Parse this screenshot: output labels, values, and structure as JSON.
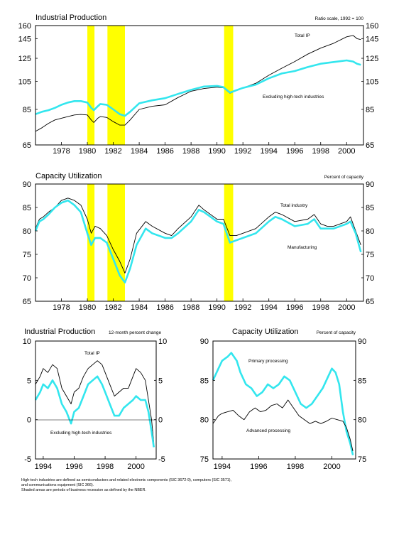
{
  "colors": {
    "highlight": "#ffff00",
    "black_series": "#000000",
    "cyan_series": "#33e6ee"
  },
  "chart_data": [
    {
      "type": "line",
      "id": "ip",
      "title": "Industrial Production",
      "scale_note": "Ratio scale, 1992 = 100",
      "log_scale": true,
      "xlim": [
        1976,
        2001.3
      ],
      "ylim": [
        65,
        160
      ],
      "yticks": [
        65,
        85,
        105,
        125,
        145,
        160
      ],
      "xticks": [
        "1978",
        "1980",
        "1982",
        "1984",
        "1986",
        "1988",
        "1990",
        "1992",
        "1994",
        "1996",
        "1998",
        "2000"
      ],
      "recessions": [
        [
          1980.0,
          1980.55
        ],
        [
          1981.55,
          1982.9
        ],
        [
          1990.55,
          1991.25
        ]
      ],
      "series": [
        {
          "name": "Total IP",
          "color": "black",
          "x": [
            1976.0,
            1976.5,
            1977.0,
            1977.5,
            1978.0,
            1978.5,
            1979.0,
            1979.5,
            1980.0,
            1980.3,
            1980.5,
            1980.8,
            1981.0,
            1981.5,
            1982.0,
            1982.5,
            1982.9,
            1983.3,
            1984.0,
            1985.0,
            1986.0,
            1987.0,
            1988.0,
            1989.0,
            1990.0,
            1990.5,
            1991.0,
            1992.0,
            1993.0,
            1994.0,
            1995.0,
            1996.0,
            1997.0,
            1998.0,
            1999.0,
            2000.0,
            2000.5,
            2000.8,
            2001.1
          ],
          "y": [
            72,
            74,
            76.5,
            78.5,
            79.5,
            80.5,
            81.5,
            81.8,
            81.5,
            78.5,
            77,
            79.5,
            80.5,
            80,
            77.5,
            75.5,
            75.5,
            78.5,
            85,
            87,
            88,
            93,
            97.5,
            99.5,
            100.5,
            100,
            96,
            100,
            103.5,
            110,
            116,
            122,
            129,
            135,
            140,
            147,
            148.5,
            145,
            144
          ]
        },
        {
          "name": "Excluding high-tech industries",
          "color": "cyan",
          "x": [
            1976.0,
            1976.5,
            1977.0,
            1977.5,
            1978.0,
            1978.5,
            1979.0,
            1979.5,
            1980.0,
            1980.3,
            1980.5,
            1980.8,
            1981.0,
            1981.5,
            1982.0,
            1982.5,
            1982.9,
            1983.3,
            1984.0,
            1985.0,
            1986.0,
            1987.0,
            1988.0,
            1989.0,
            1990.0,
            1990.5,
            1991.0,
            1992.0,
            1993.0,
            1994.0,
            1995.0,
            1996.0,
            1997.0,
            1998.0,
            1999.0,
            2000.0,
            2000.5,
            2000.8,
            2001.1
          ],
          "y": [
            82,
            83.5,
            84.5,
            86,
            88,
            89.5,
            90.5,
            90.5,
            89.5,
            86,
            84.5,
            87,
            88.5,
            88,
            85,
            82,
            81,
            83.5,
            89,
            91,
            92.5,
            95.5,
            98.5,
            101,
            101.5,
            100.5,
            96.5,
            100,
            102.5,
            107.5,
            111.5,
            113.5,
            117,
            120,
            121.5,
            123,
            122,
            120,
            119
          ]
        }
      ],
      "labels": [
        "Total IP",
        "Excluding high-tech industries"
      ]
    },
    {
      "type": "line",
      "id": "cu",
      "title": "Capacity Utilization",
      "scale_note": "Percent of capacity",
      "xlim": [
        1976,
        2001.3
      ],
      "ylim": [
        65,
        90
      ],
      "yticks": [
        65,
        70,
        75,
        80,
        85,
        90
      ],
      "xticks": [
        "1978",
        "1980",
        "1982",
        "1984",
        "1986",
        "1988",
        "1990",
        "1992",
        "1994",
        "1996",
        "1998",
        "2000"
      ],
      "recessions": [
        [
          1980.0,
          1980.55
        ],
        [
          1981.55,
          1982.9
        ],
        [
          1990.55,
          1991.25
        ]
      ],
      "series": [
        {
          "name": "Total industry",
          "color": "black",
          "x": [
            1976.0,
            1976.3,
            1976.6,
            1977.0,
            1977.5,
            1978.0,
            1978.5,
            1979.0,
            1979.5,
            1980.0,
            1980.3,
            1980.6,
            1981.0,
            1981.5,
            1982.0,
            1982.5,
            1982.9,
            1983.3,
            1983.8,
            1984.5,
            1985.0,
            1986.0,
            1986.5,
            1987.0,
            1988.0,
            1988.6,
            1989.0,
            1990.0,
            1990.5,
            1991.0,
            1991.5,
            1992.0,
            1993.0,
            1994.0,
            1994.5,
            1995.0,
            1996.0,
            1997.0,
            1997.5,
            1998.0,
            1998.5,
            1999.0,
            2000.0,
            2000.3,
            2000.7,
            2001.1
          ],
          "y": [
            80.5,
            82.5,
            83,
            84,
            85,
            86.5,
            87,
            86.5,
            85.5,
            82.5,
            79.5,
            81,
            80.5,
            79,
            76,
            73.5,
            71,
            74,
            79.5,
            82,
            81,
            79.5,
            79,
            80.5,
            83,
            85.5,
            84.5,
            82.5,
            82.5,
            79,
            79,
            79.5,
            80.5,
            83,
            84,
            83.5,
            82,
            82.5,
            83.5,
            81.5,
            81,
            81,
            82,
            83,
            80,
            77
          ]
        },
        {
          "name": "Manufacturing",
          "color": "cyan",
          "x": [
            1976.0,
            1976.3,
            1976.6,
            1977.0,
            1977.5,
            1978.0,
            1978.5,
            1979.0,
            1979.5,
            1980.0,
            1980.3,
            1980.6,
            1981.0,
            1981.5,
            1982.0,
            1982.5,
            1982.9,
            1983.3,
            1983.8,
            1984.5,
            1985.0,
            1986.0,
            1986.5,
            1987.0,
            1988.0,
            1988.6,
            1989.0,
            1990.0,
            1990.5,
            1991.0,
            1991.5,
            1992.0,
            1993.0,
            1994.0,
            1994.5,
            1995.0,
            1996.0,
            1997.0,
            1997.5,
            1998.0,
            1998.5,
            1999.0,
            2000.0,
            2000.3,
            2000.7,
            2001.1
          ],
          "y": [
            80,
            82,
            82.5,
            83.5,
            85,
            86,
            86.5,
            85.5,
            84,
            79.5,
            77,
            78.5,
            78.5,
            77.5,
            74,
            70.5,
            69,
            72,
            77,
            80.5,
            79.5,
            78.5,
            78.5,
            79.5,
            82,
            84.5,
            84,
            82,
            81.5,
            77.5,
            78,
            78.5,
            79.5,
            82,
            83,
            82.5,
            81,
            81.5,
            82.5,
            80.5,
            80.5,
            80.5,
            81.5,
            82,
            79.5,
            75.5
          ]
        }
      ],
      "labels": [
        "Total industry",
        "Manufacturing"
      ]
    },
    {
      "type": "line",
      "id": "ip12",
      "title": "Industrial Production",
      "scale_note": "12-month percent change",
      "xlim": [
        1993.5,
        2001.3
      ],
      "ylim": [
        -5,
        10
      ],
      "yticks": [
        -5,
        0,
        5,
        10
      ],
      "xticks": [
        "1994",
        "1996",
        "1998",
        "2000"
      ],
      "series": [
        {
          "name": "Total IP",
          "color": "black",
          "x": [
            1993.5,
            1993.8,
            1994.0,
            1994.3,
            1994.6,
            1994.9,
            1995.2,
            1995.5,
            1995.8,
            1996.0,
            1996.3,
            1996.6,
            1996.9,
            1997.2,
            1997.5,
            1997.8,
            1998.0,
            1998.3,
            1998.6,
            1998.9,
            1999.2,
            1999.5,
            1999.8,
            2000.0,
            2000.3,
            2000.6,
            2000.8,
            2001.0,
            2001.15
          ],
          "y": [
            4.5,
            5.5,
            6.5,
            6,
            7,
            6.5,
            4,
            3,
            2,
            3.5,
            4,
            5.5,
            6.5,
            7,
            7.5,
            7,
            6,
            4.5,
            3,
            3.5,
            4,
            4,
            5.5,
            6.5,
            6,
            5,
            2.5,
            0,
            -3
          ]
        },
        {
          "name": "Excluding high-tech industries",
          "color": "cyan",
          "x": [
            1993.5,
            1993.8,
            1994.0,
            1994.3,
            1994.6,
            1994.9,
            1995.2,
            1995.5,
            1995.8,
            1996.0,
            1996.3,
            1996.6,
            1996.9,
            1997.2,
            1997.5,
            1997.8,
            1998.0,
            1998.3,
            1998.6,
            1998.9,
            1999.2,
            1999.5,
            1999.8,
            2000.0,
            2000.3,
            2000.6,
            2000.8,
            2001.0,
            2001.15
          ],
          "y": [
            2.5,
            3.5,
            4.5,
            4,
            5,
            4,
            2,
            1,
            -0.5,
            1,
            1.5,
            3,
            4.5,
            5,
            5.5,
            4.5,
            3.5,
            2,
            0.5,
            0.5,
            1.5,
            2,
            2.5,
            3,
            2.5,
            2.5,
            1,
            -1.5,
            -3.5
          ]
        }
      ],
      "labels": [
        "Total IP",
        "Excluding high-tech industries"
      ]
    },
    {
      "type": "line",
      "id": "cu2",
      "title": "Capacity Utilization",
      "scale_note": "Percent of capacity",
      "xlim": [
        1993.5,
        2001.3
      ],
      "ylim": [
        75,
        90
      ],
      "yticks": [
        75,
        80,
        85,
        90
      ],
      "xticks": [
        "1994",
        "1996",
        "1998",
        "2000"
      ],
      "series": [
        {
          "name": "Primary processing",
          "color": "cyan",
          "x": [
            1993.5,
            1993.8,
            1994.0,
            1994.3,
            1994.5,
            1994.8,
            1995.0,
            1995.3,
            1995.6,
            1995.9,
            1996.2,
            1996.5,
            1996.8,
            1997.1,
            1997.4,
            1997.7,
            1998.0,
            1998.3,
            1998.6,
            1998.9,
            1999.2,
            1999.5,
            1999.8,
            2000.0,
            2000.2,
            2000.4,
            2000.6,
            2000.8,
            2001.0,
            2001.15
          ],
          "y": [
            85,
            86.5,
            87.5,
            88,
            88.5,
            87.5,
            86,
            84.5,
            84,
            83,
            83.5,
            84.5,
            84,
            84.5,
            85.5,
            85,
            83.5,
            82,
            81.5,
            82,
            83,
            84,
            85.5,
            86.5,
            86,
            84.5,
            81,
            78.5,
            77,
            75.5
          ]
        },
        {
          "name": "Advanced processing",
          "color": "black",
          "x": [
            1993.5,
            1993.8,
            1994.0,
            1994.3,
            1994.6,
            1994.9,
            1995.2,
            1995.5,
            1995.8,
            1996.1,
            1996.4,
            1996.7,
            1997.0,
            1997.3,
            1997.6,
            1997.9,
            1998.2,
            1998.5,
            1998.8,
            1999.1,
            1999.4,
            1999.7,
            2000.0,
            2000.3,
            2000.6,
            2000.8,
            2001.0,
            2001.15
          ],
          "y": [
            79.5,
            80.5,
            80.8,
            81,
            81.2,
            80.5,
            80,
            81,
            81.5,
            81,
            81.2,
            81.8,
            82,
            81.5,
            82.5,
            81.5,
            80.5,
            80,
            79.5,
            79.8,
            79.5,
            79.8,
            80.2,
            80,
            79.8,
            79,
            77.5,
            76
          ]
        }
      ],
      "labels": [
        "Primary processing",
        "Advanced processing"
      ]
    }
  ],
  "footnotes": [
    "High-tech industries are defined as semiconductors and related electronic components (SIC 3672-9), computers (SIC 3571),",
    "and communications equipment (SIC 366).",
    "Shaded areas are periods of business recession as defined by the NBER."
  ]
}
